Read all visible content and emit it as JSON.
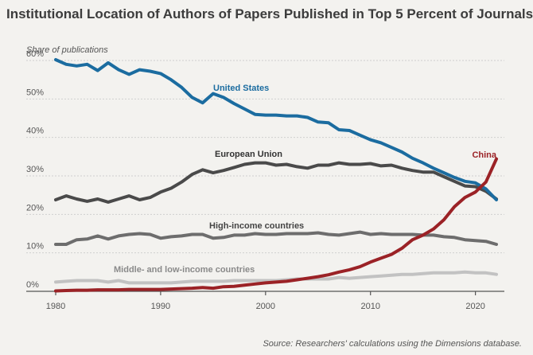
{
  "title": "Institutional Location of Authors of Papers Published in Top 5 Percent of Journals",
  "source": "Source: Researchers' calculations using the Dimensions database.",
  "chart_data": {
    "type": "line",
    "ylabel": "Share of publications",
    "ylim": [
      0,
      60
    ],
    "xlim": [
      1980,
      2022
    ],
    "yticks": [
      0,
      10,
      20,
      30,
      40,
      50,
      60
    ],
    "ytick_labels": [
      "0%",
      "10%",
      "20%",
      "30%",
      "40%",
      "50%",
      "60%"
    ],
    "xticks": [
      1980,
      1990,
      2000,
      2010,
      2020
    ],
    "grid": true,
    "x": [
      1980,
      1981,
      1982,
      1983,
      1984,
      1985,
      1986,
      1987,
      1988,
      1989,
      1990,
      1991,
      1992,
      1993,
      1994,
      1995,
      1996,
      1997,
      1998,
      1999,
      2000,
      2001,
      2002,
      2003,
      2004,
      2005,
      2006,
      2007,
      2008,
      2009,
      2010,
      2011,
      2012,
      2013,
      2014,
      2015,
      2016,
      2017,
      2018,
      2019,
      2020,
      2021,
      2022
    ],
    "series": [
      {
        "name": "United States",
        "color": "#1b6ca0",
        "label_color": "#1b6ca0",
        "values": [
          60.2,
          59.0,
          58.6,
          59.0,
          57.4,
          59.4,
          57.6,
          56.4,
          57.6,
          57.2,
          56.6,
          55.0,
          53.0,
          50.4,
          49.0,
          51.4,
          50.4,
          48.8,
          47.4,
          46.0,
          45.8,
          45.8,
          45.6,
          45.6,
          45.2,
          44.0,
          43.8,
          42.0,
          41.8,
          40.6,
          39.4,
          38.6,
          37.4,
          36.2,
          34.6,
          33.4,
          32.0,
          30.8,
          29.6,
          28.6,
          28.2,
          26.6,
          23.8
        ]
      },
      {
        "name": "European Union",
        "color": "#4a4a4a",
        "label_color": "#333333",
        "values": [
          23.8,
          24.8,
          24.0,
          23.4,
          24.0,
          23.2,
          24.0,
          24.8,
          23.8,
          24.4,
          25.8,
          26.8,
          28.4,
          30.4,
          31.6,
          30.8,
          31.4,
          32.2,
          33.0,
          33.4,
          33.4,
          32.8,
          33.0,
          32.4,
          32.0,
          32.8,
          32.8,
          33.4,
          33.0,
          33.0,
          33.2,
          32.6,
          32.8,
          32.0,
          31.4,
          31.0,
          31.0,
          29.8,
          28.6,
          27.4,
          27.2,
          26.0,
          24.0
        ]
      },
      {
        "name": "High-income countries",
        "color": "#6d6d6d",
        "label_color": "#444444",
        "values": [
          12.2,
          12.2,
          13.4,
          13.6,
          14.4,
          13.6,
          14.4,
          14.8,
          15.0,
          14.8,
          13.8,
          14.2,
          14.4,
          14.8,
          14.8,
          13.8,
          14.0,
          14.6,
          14.6,
          15.0,
          14.8,
          14.8,
          15.0,
          15.0,
          15.0,
          15.2,
          14.8,
          14.6,
          15.0,
          15.4,
          14.8,
          15.0,
          14.8,
          14.8,
          14.8,
          14.6,
          14.6,
          14.2,
          14.0,
          13.4,
          13.2,
          13.0,
          12.2
        ]
      },
      {
        "name": "Middle- and low-income countries",
        "color": "#c2c2c2",
        "label_color": "#8a8a8a",
        "values": [
          2.4,
          2.6,
          2.8,
          2.8,
          2.8,
          2.4,
          2.8,
          2.2,
          2.2,
          2.2,
          2.2,
          2.2,
          2.4,
          2.6,
          2.6,
          2.6,
          2.6,
          2.8,
          2.8,
          2.8,
          2.8,
          2.8,
          3.0,
          3.2,
          3.2,
          3.2,
          3.2,
          3.6,
          3.4,
          3.6,
          3.8,
          4.0,
          4.2,
          4.4,
          4.4,
          4.6,
          4.8,
          4.8,
          4.8,
          5.0,
          4.8,
          4.8,
          4.4
        ]
      },
      {
        "name": "China",
        "color": "#9b2226",
        "label_color": "#9b2226",
        "values": [
          0.1,
          0.2,
          0.3,
          0.3,
          0.4,
          0.4,
          0.4,
          0.5,
          0.5,
          0.5,
          0.5,
          0.6,
          0.7,
          0.8,
          1.0,
          0.8,
          1.2,
          1.3,
          1.6,
          1.9,
          2.2,
          2.4,
          2.6,
          3.0,
          3.4,
          3.8,
          4.3,
          5.0,
          5.6,
          6.4,
          7.6,
          8.6,
          9.6,
          11.2,
          13.4,
          14.6,
          16.2,
          18.6,
          22.0,
          24.4,
          25.8,
          28.4,
          34.4
        ]
      }
    ]
  }
}
